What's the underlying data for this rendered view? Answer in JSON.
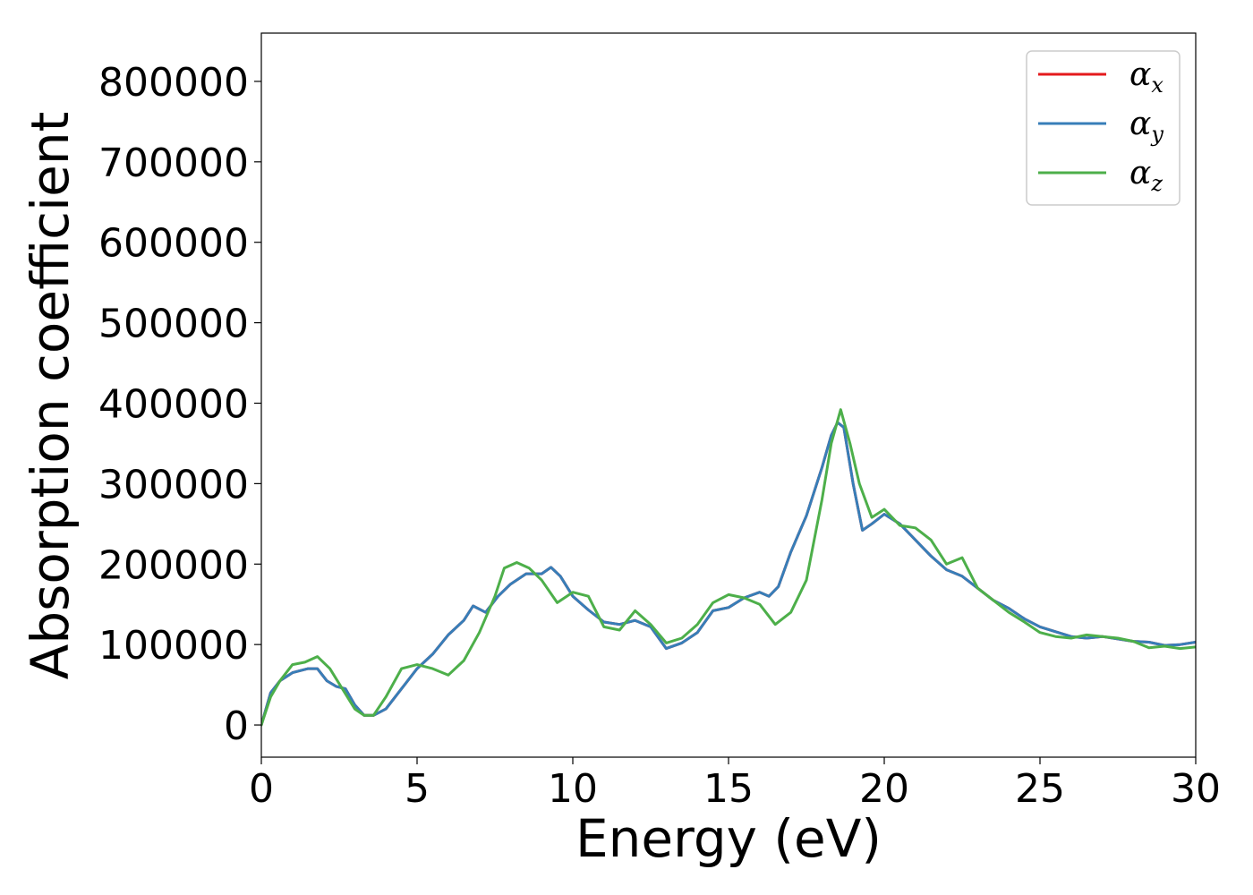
{
  "chart_data": {
    "type": "line",
    "xlabel": "Energy (eV)",
    "ylabel": "Absorption coefficient",
    "xlim": [
      0,
      30
    ],
    "ylim": [
      -40000,
      860000
    ],
    "xticks": [
      0,
      5,
      10,
      15,
      20,
      25,
      30
    ],
    "yticks": [
      0,
      100000,
      200000,
      300000,
      400000,
      500000,
      600000,
      700000,
      800000
    ],
    "grid": false,
    "legend_position": "top-right",
    "series": [
      {
        "name": "α",
        "subscript": "x",
        "color": "#e41a1c",
        "x": [
          0,
          0.3,
          0.6,
          1.0,
          1.5,
          1.8,
          2.1,
          2.4,
          2.7,
          3.0,
          3.3,
          3.6,
          4.0,
          4.5,
          5.0,
          5.5,
          6.0,
          6.5,
          6.8,
          7.2,
          7.6,
          8.0,
          8.5,
          9.0,
          9.3,
          9.6,
          10.0,
          10.5,
          11.0,
          11.5,
          12.0,
          12.5,
          13.0,
          13.5,
          14.0,
          14.5,
          15.0,
          15.5,
          16.0,
          16.3,
          16.6,
          17.0,
          17.5,
          18.0,
          18.3,
          18.5,
          18.7,
          19.0,
          19.3,
          19.6,
          20.0,
          20.5,
          21.0,
          21.5,
          22.0,
          22.5,
          23.0,
          23.5,
          24.0,
          24.5,
          25.0,
          25.5,
          26.0,
          26.5,
          27.0,
          27.5,
          28.0,
          28.5,
          29.0,
          29.5,
          30.0
        ],
        "y": [
          0,
          40000,
          55000,
          65000,
          70000,
          70000,
          55000,
          48000,
          45000,
          25000,
          12000,
          12000,
          20000,
          45000,
          70000,
          88000,
          112000,
          130000,
          148000,
          140000,
          160000,
          175000,
          188000,
          188000,
          196000,
          185000,
          160000,
          143000,
          128000,
          125000,
          130000,
          122000,
          95000,
          102000,
          115000,
          142000,
          146000,
          158000,
          165000,
          160000,
          172000,
          215000,
          260000,
          320000,
          360000,
          376000,
          370000,
          300000,
          242000,
          250000,
          262000,
          250000,
          230000,
          210000,
          193000,
          185000,
          170000,
          155000,
          145000,
          132000,
          122000,
          116000,
          110000,
          108000,
          110000,
          107000,
          104000,
          103000,
          99000,
          100000,
          103000
        ]
      },
      {
        "name": "α",
        "subscript": "y",
        "color": "#377eb8",
        "x": [
          0,
          0.3,
          0.6,
          1.0,
          1.5,
          1.8,
          2.1,
          2.4,
          2.7,
          3.0,
          3.3,
          3.6,
          4.0,
          4.5,
          5.0,
          5.5,
          6.0,
          6.5,
          6.8,
          7.2,
          7.6,
          8.0,
          8.5,
          9.0,
          9.3,
          9.6,
          10.0,
          10.5,
          11.0,
          11.5,
          12.0,
          12.5,
          13.0,
          13.5,
          14.0,
          14.5,
          15.0,
          15.5,
          16.0,
          16.3,
          16.6,
          17.0,
          17.5,
          18.0,
          18.3,
          18.5,
          18.7,
          19.0,
          19.3,
          19.6,
          20.0,
          20.5,
          21.0,
          21.5,
          22.0,
          22.5,
          23.0,
          23.5,
          24.0,
          24.5,
          25.0,
          25.5,
          26.0,
          26.5,
          27.0,
          27.5,
          28.0,
          28.5,
          29.0,
          29.5,
          30.0
        ],
        "y": [
          0,
          40000,
          55000,
          65000,
          70000,
          70000,
          55000,
          48000,
          45000,
          25000,
          12000,
          12000,
          20000,
          45000,
          70000,
          88000,
          112000,
          130000,
          148000,
          140000,
          160000,
          175000,
          188000,
          188000,
          196000,
          185000,
          160000,
          143000,
          128000,
          125000,
          130000,
          122000,
          95000,
          102000,
          115000,
          142000,
          146000,
          158000,
          165000,
          160000,
          172000,
          215000,
          260000,
          320000,
          360000,
          376000,
          370000,
          300000,
          242000,
          250000,
          262000,
          250000,
          230000,
          210000,
          193000,
          185000,
          170000,
          155000,
          145000,
          132000,
          122000,
          116000,
          110000,
          108000,
          110000,
          107000,
          104000,
          103000,
          99000,
          100000,
          103000
        ]
      },
      {
        "name": "α",
        "subscript": "z",
        "color": "#4daf4a",
        "x": [
          0,
          0.3,
          0.6,
          1.0,
          1.4,
          1.8,
          2.2,
          2.6,
          3.0,
          3.3,
          3.6,
          4.0,
          4.5,
          5.0,
          5.5,
          6.0,
          6.5,
          7.0,
          7.5,
          7.8,
          8.2,
          8.6,
          9.0,
          9.5,
          10.0,
          10.5,
          11.0,
          11.5,
          12.0,
          12.5,
          13.0,
          13.5,
          14.0,
          14.5,
          15.0,
          15.5,
          16.0,
          16.5,
          17.0,
          17.5,
          18.0,
          18.3,
          18.6,
          18.9,
          19.2,
          19.6,
          20.0,
          20.5,
          21.0,
          21.5,
          22.0,
          22.5,
          23.0,
          23.5,
          24.0,
          24.5,
          25.0,
          25.5,
          26.0,
          26.5,
          27.0,
          27.5,
          28.0,
          28.5,
          29.0,
          29.5,
          30.0
        ],
        "y": [
          0,
          35000,
          55000,
          75000,
          78000,
          85000,
          70000,
          45000,
          20000,
          12000,
          12000,
          35000,
          70000,
          75000,
          70000,
          62000,
          80000,
          115000,
          160000,
          195000,
          202000,
          195000,
          180000,
          152000,
          165000,
          160000,
          122000,
          118000,
          142000,
          125000,
          102000,
          108000,
          125000,
          152000,
          162000,
          158000,
          150000,
          125000,
          140000,
          180000,
          280000,
          350000,
          392000,
          350000,
          300000,
          258000,
          268000,
          248000,
          245000,
          230000,
          200000,
          208000,
          170000,
          155000,
          140000,
          128000,
          115000,
          110000,
          108000,
          112000,
          110000,
          108000,
          104000,
          96000,
          98000,
          95000,
          97000
        ]
      }
    ]
  }
}
